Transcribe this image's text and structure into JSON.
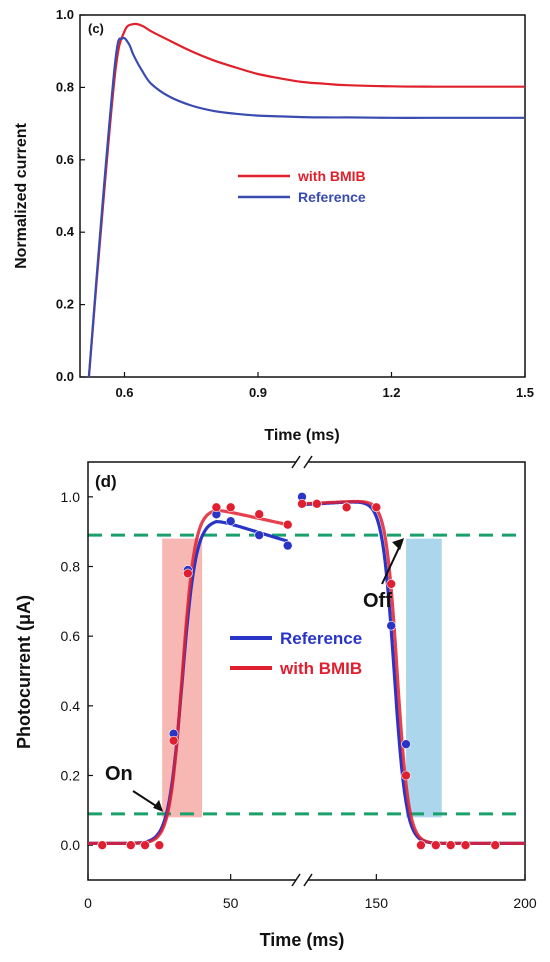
{
  "chart_data": [
    {
      "panel": "(c)",
      "type": "line",
      "xlabel": "Time (ms)",
      "ylabel": "Normalized current",
      "xlim": [
        0.5,
        1.5
      ],
      "ylim": [
        0.0,
        1.0
      ],
      "xticks": [
        "0.6",
        "0.9",
        "1.2",
        "1.5"
      ],
      "xtick_values": [
        0.6,
        0.9,
        1.2,
        1.5
      ],
      "yticks": [
        "0.0",
        "0.2",
        "0.4",
        "0.6",
        "0.8",
        "1.0"
      ],
      "ytick_values": [
        0.0,
        0.2,
        0.4,
        0.6,
        0.8,
        1.0
      ],
      "legend_position": "center",
      "grid": false,
      "series": [
        {
          "name": "with BMIB",
          "color": "#e0202a",
          "x": [
            0.52,
            0.55,
            0.58,
            0.6,
            0.62,
            0.64,
            0.66,
            0.7,
            0.75,
            0.8,
            0.85,
            0.9,
            0.95,
            1.0,
            1.05,
            1.1,
            1.2,
            1.3,
            1.4,
            1.5
          ],
          "y": [
            0.0,
            0.45,
            0.85,
            0.955,
            0.975,
            0.97,
            0.955,
            0.93,
            0.9,
            0.875,
            0.855,
            0.837,
            0.825,
            0.815,
            0.81,
            0.806,
            0.803,
            0.802,
            0.802,
            0.802
          ]
        },
        {
          "name": "Reference",
          "color": "#3a4bb0",
          "x": [
            0.52,
            0.55,
            0.58,
            0.595,
            0.61,
            0.62,
            0.64,
            0.66,
            0.7,
            0.75,
            0.8,
            0.85,
            0.9,
            0.95,
            1.0,
            1.05,
            1.1,
            1.2,
            1.3,
            1.5
          ],
          "y": [
            0.0,
            0.47,
            0.88,
            0.935,
            0.92,
            0.89,
            0.845,
            0.81,
            0.775,
            0.75,
            0.735,
            0.727,
            0.722,
            0.72,
            0.718,
            0.717,
            0.717,
            0.716,
            0.716,
            0.716
          ]
        }
      ]
    },
    {
      "panel": "(d)",
      "type": "line",
      "xlabel": "Time (ms)",
      "ylabel": "Photocurrent (μA)",
      "xlim": [
        0,
        200
      ],
      "ylim": [
        -0.1,
        1.1
      ],
      "axis_break": "between 75 and 125 ms",
      "xticks": [
        "0",
        "50",
        "150",
        "200"
      ],
      "xtick_values": [
        0,
        50,
        150,
        200
      ],
      "yticks": [
        "0.0",
        "0.2",
        "0.4",
        "0.6",
        "0.8",
        "1.0"
      ],
      "ytick_values": [
        0.0,
        0.2,
        0.4,
        0.6,
        0.8,
        1.0
      ],
      "legend_position": "center",
      "grid": false,
      "reference_lines": [
        0.09,
        0.89
      ],
      "shaded_regions": [
        {
          "x": [
            26,
            40
          ],
          "color": "#f4a09a"
        },
        {
          "x": [
            160,
            172
          ],
          "color": "#8fc8e4"
        }
      ],
      "annotations": [
        {
          "text": "On",
          "x": 27,
          "y": 0.09
        },
        {
          "text": "Off",
          "x": 160,
          "y": 0.89
        }
      ],
      "series": [
        {
          "name": "Reference",
          "color": "#2a35c8",
          "points_x": [
            5,
            15,
            20,
            25,
            30,
            35,
            45,
            50,
            60,
            70,
            125,
            130,
            140,
            150,
            155,
            160,
            165,
            170,
            175,
            180,
            190
          ],
          "points_y": [
            0.0,
            0.0,
            0.0,
            0.0,
            0.32,
            0.79,
            0.95,
            0.93,
            0.89,
            0.86,
            1.0,
            0.98,
            0.97,
            0.97,
            0.63,
            0.29,
            0.0,
            0.0,
            0.0,
            0.0,
            0.0
          ]
        },
        {
          "name": "with BMIB",
          "color": "#e02030",
          "points_x": [
            5,
            15,
            20,
            25,
            30,
            35,
            45,
            50,
            60,
            70,
            125,
            130,
            140,
            150,
            155,
            160,
            165,
            170,
            175,
            180,
            190
          ],
          "points_y": [
            0.0,
            0.0,
            0.0,
            0.0,
            0.3,
            0.78,
            0.97,
            0.97,
            0.95,
            0.92,
            0.98,
            0.98,
            0.97,
            0.97,
            0.75,
            0.2,
            0.0,
            0.0,
            0.0,
            0.0,
            0.0
          ]
        }
      ]
    }
  ]
}
